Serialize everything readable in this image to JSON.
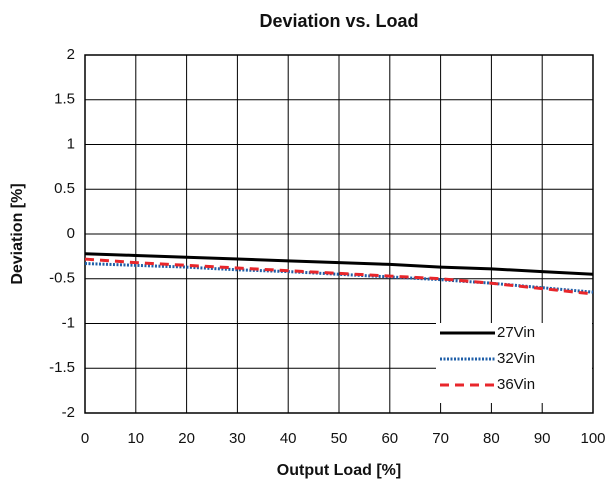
{
  "chart_data": {
    "type": "line",
    "title": "Deviation vs. Load",
    "x_label": "Output Load [%]",
    "y_label": "Deviation [%]",
    "x": [
      0,
      10,
      20,
      30,
      40,
      50,
      60,
      70,
      80,
      90,
      100
    ],
    "series": [
      {
        "name": "27Vin",
        "color": "#000000",
        "style": "solid",
        "values": [
          -0.22,
          -0.24,
          -0.26,
          -0.28,
          -0.3,
          -0.32,
          -0.34,
          -0.37,
          -0.39,
          -0.42,
          -0.45
        ]
      },
      {
        "name": "32Vin",
        "color": "#1f5fa8",
        "style": "dotted",
        "values": [
          -0.33,
          -0.35,
          -0.37,
          -0.4,
          -0.42,
          -0.45,
          -0.48,
          -0.51,
          -0.55,
          -0.6,
          -0.65
        ]
      },
      {
        "name": "36Vin",
        "color": "#e8262b",
        "style": "dashed",
        "values": [
          -0.28,
          -0.32,
          -0.35,
          -0.38,
          -0.41,
          -0.44,
          -0.47,
          -0.5,
          -0.55,
          -0.61,
          -0.67
        ]
      }
    ],
    "xlim": [
      0,
      100
    ],
    "xticks": [
      0,
      10,
      20,
      30,
      40,
      50,
      60,
      70,
      80,
      90,
      100
    ],
    "ylim": [
      -2,
      2
    ],
    "yticks": [
      2,
      1.5,
      1,
      0.5,
      0,
      -0.5,
      -1,
      -1.5,
      -2
    ],
    "grid": true,
    "legend": "lower right"
  }
}
